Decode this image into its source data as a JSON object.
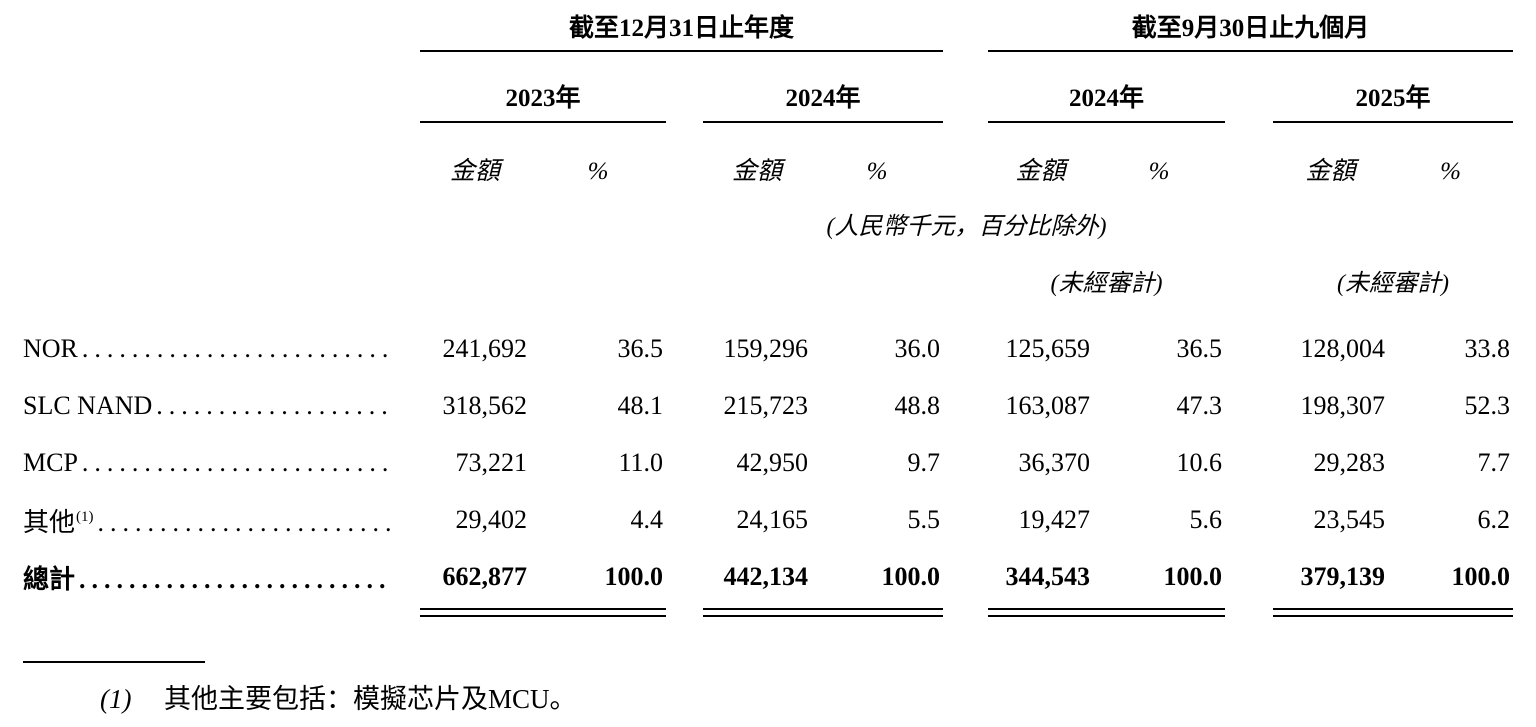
{
  "table": {
    "groups": [
      {
        "title": "截至12月31日止年度"
      },
      {
        "title": "截至9月30日止九個月"
      }
    ],
    "years": [
      "2023年",
      "2024年",
      "2024年",
      "2025年"
    ],
    "amount_header": "金額",
    "percent_header": "%",
    "unit_note": "(人民幣千元，百分比除外)",
    "unaudited_note": "(未經審計)",
    "rows": [
      {
        "label": "NOR",
        "values": [
          "241,692",
          "36.5",
          "159,296",
          "36.0",
          "125,659",
          "36.5",
          "128,004",
          "33.8"
        ]
      },
      {
        "label": "SLC NAND",
        "values": [
          "318,562",
          "48.1",
          "215,723",
          "48.8",
          "163,087",
          "47.3",
          "198,307",
          "52.3"
        ]
      },
      {
        "label": "MCP",
        "values": [
          "73,221",
          "11.0",
          "42,950",
          "9.7",
          "36,370",
          "10.6",
          "29,283",
          "7.7"
        ]
      },
      {
        "label": "其他",
        "superscript": "(1)",
        "values": [
          "29,402",
          "4.4",
          "24,165",
          "5.5",
          "19,427",
          "5.6",
          "23,545",
          "6.2"
        ]
      }
    ],
    "total": {
      "label": "總計",
      "values": [
        "662,877",
        "100.0",
        "442,134",
        "100.0",
        "344,543",
        "100.0",
        "379,139",
        "100.0"
      ]
    }
  },
  "footnote": {
    "marker": "(1)",
    "text": "其他主要包括：模擬芯片及MCU。"
  }
}
